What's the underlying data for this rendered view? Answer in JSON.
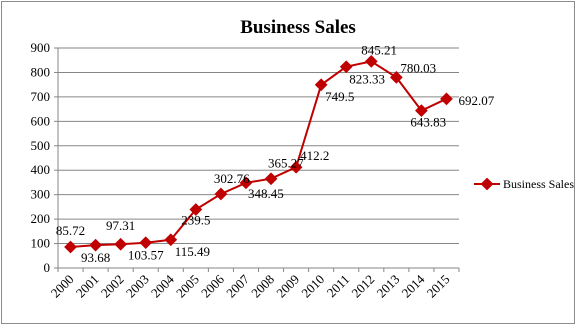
{
  "chart_data": {
    "type": "line",
    "title": "Business Sales",
    "xlabel": "",
    "ylabel": "",
    "ylim": [
      0,
      900
    ],
    "yticks": [
      "0",
      "100",
      "200",
      "300",
      "400",
      "500",
      "600",
      "700",
      "800",
      "900"
    ],
    "categories": [
      "2000",
      "2001",
      "2002",
      "2003",
      "2004",
      "2005",
      "2006",
      "2007",
      "2008",
      "2009",
      "2010",
      "2011",
      "2012",
      "2013",
      "2014",
      "2015"
    ],
    "grid": true,
    "legend_position": "right",
    "series": [
      {
        "name": "Business Sales",
        "color": "#c00000",
        "values": [
          85.72,
          93.68,
          97.31,
          103.57,
          115.49,
          239.5,
          302.76,
          348.45,
          365.27,
          412.2,
          749.5,
          823.33,
          845.21,
          780.03,
          643.83,
          692.07
        ],
        "labels": [
          "85.72",
          "93.68",
          "97.31",
          "103.57",
          "115.49",
          "239.5",
          "302.76",
          "348.45",
          "365.27",
          "412.2",
          "749.5",
          "823.33",
          "845.21",
          "780.03",
          "643.83",
          "692.07"
        ]
      }
    ]
  }
}
